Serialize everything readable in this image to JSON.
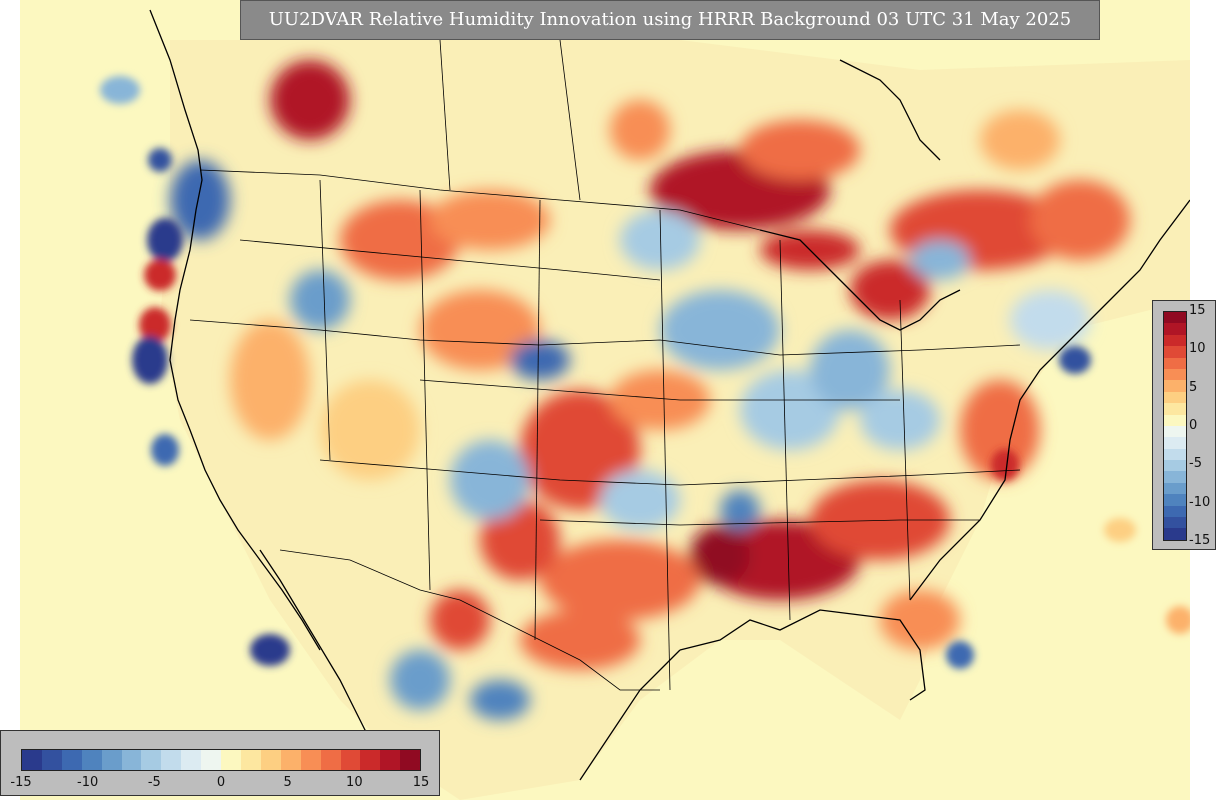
{
  "title": "UU2DVAR Relative Humidity Innovation using HRRR Background 03 UTC 31 May 2025",
  "colorbar": {
    "min": -15,
    "max": 15,
    "ticks": [
      "-15",
      "-10",
      "-5",
      "0",
      "5",
      "10",
      "15"
    ],
    "colors": [
      "#2a3a8c",
      "#33519f",
      "#3d69b1",
      "#4f83be",
      "#6a9dcb",
      "#88b5d8",
      "#a6cbe3",
      "#c2dcec",
      "#dcebf2",
      "#eef6f0",
      "#fcf8c0",
      "#fde7a0",
      "#fdcf82",
      "#fcb16a",
      "#f88e55",
      "#ef6d45",
      "#e04a36",
      "#cb2a2a",
      "#b01526",
      "#900a22"
    ]
  },
  "map": {
    "background_color": "#fcf8c0"
  }
}
